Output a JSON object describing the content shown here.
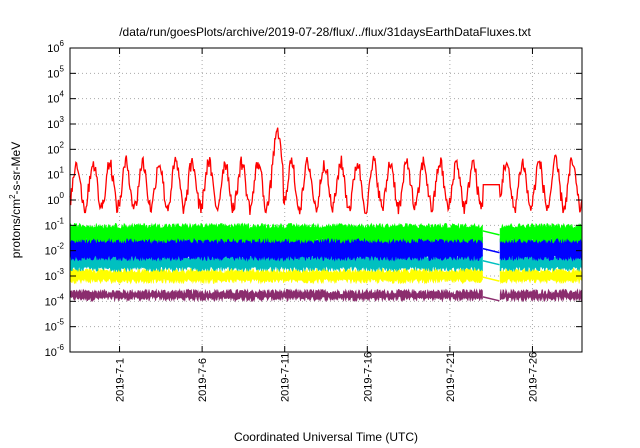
{
  "chart_data": {
    "type": "line",
    "title": "/data/run/goesPlots/archive/2019-07-28/flux/../flux/31daysEarthDataFluxes.txt",
    "xlabel": "Coordinated Universal Time (UTC)",
    "ylabel_parts": {
      "pre": "protons/cm",
      "sup": "2",
      "post": "-s-sr-MeV"
    },
    "yscale": "log",
    "ylim": [
      1e-06,
      1000000.0
    ],
    "y_ticks": [
      {
        "base": "10",
        "exp": "-6"
      },
      {
        "base": "10",
        "exp": "-5"
      },
      {
        "base": "10",
        "exp": "-4"
      },
      {
        "base": "10",
        "exp": "-3"
      },
      {
        "base": "10",
        "exp": "-2"
      },
      {
        "base": "10",
        "exp": "-1"
      },
      {
        "base": "10",
        "exp": "0"
      },
      {
        "base": "10",
        "exp": "1"
      },
      {
        "base": "10",
        "exp": "2"
      },
      {
        "base": "10",
        "exp": "3"
      },
      {
        "base": "10",
        "exp": "4"
      },
      {
        "base": "10",
        "exp": "5"
      },
      {
        "base": "10",
        "exp": "6"
      }
    ],
    "xlim": [
      "2019-06-28",
      "2019-07-29"
    ],
    "x_ticks": [
      "2019-7-1",
      "2019-7-6",
      "2019-7-11",
      "2019-7-16",
      "2019-7-21",
      "2019-7-26"
    ],
    "grid": true,
    "data_gap": [
      "2019-07-23",
      "2019-07-24"
    ],
    "series": [
      {
        "color": "#ff0000",
        "daily_max": 30,
        "daily_min": 0.5,
        "spike_max": 1000,
        "gap_value": 4
      },
      {
        "color": "#00ff00",
        "typical": 0.06,
        "envelope": [
          0.02,
          0.12
        ]
      },
      {
        "color": "#0000ff",
        "typical": 0.012,
        "envelope": [
          0.004,
          0.04
        ]
      },
      {
        "color": "#00c0c0",
        "typical": 0.004,
        "envelope": [
          0.0015,
          0.008
        ]
      },
      {
        "color": "#ffff00",
        "typical": 0.0009,
        "envelope": [
          0.0005,
          0.002
        ]
      },
      {
        "color": "#8b2d6e",
        "typical": 0.00015,
        "envelope": [
          0.0001,
          0.0003
        ]
      }
    ]
  }
}
